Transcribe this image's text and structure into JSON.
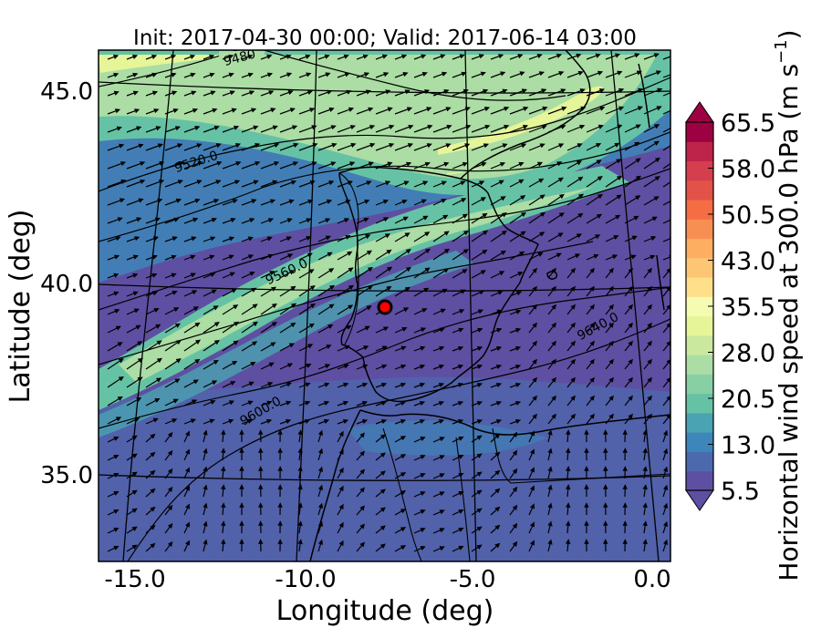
{
  "title": "Init: 2017-04-30 00:00; Valid: 2017-06-14 03:00",
  "chart_data": {
    "type": "map",
    "xlabel": "Longitude (deg)",
    "ylabel": "Latitude (deg)",
    "x_ticks": [
      "-15.0",
      "-10.0",
      "-5.0",
      "0.0"
    ],
    "y_ticks": [
      "45.0",
      "40.0",
      "35.0"
    ],
    "xlim": [
      -16.0,
      0.3
    ],
    "ylim": [
      32.8,
      46.0
    ],
    "colorbar": {
      "label": "Horizontal wind speed at 300.0 hPa (m s",
      "label_sup": "−1",
      "label_end": ")",
      "ticks": [
        "65.5",
        "58.0",
        "50.5",
        "43.0",
        "35.5",
        "28.0",
        "20.5",
        "13.0",
        "5.5"
      ],
      "range": [
        5.5,
        65.5
      ],
      "extend": "both",
      "colors": [
        "#5e4fa2",
        "#4c69ae",
        "#3d86b9",
        "#4aa3b2",
        "#66c2a5",
        "#88cfa4",
        "#abdda4",
        "#cbe99e",
        "#e6f598",
        "#f5fbb0",
        "#fee08b",
        "#fdc674",
        "#fdae61",
        "#f88f52",
        "#f46d43",
        "#e25249",
        "#d53e4f",
        "#be2449",
        "#9e0142"
      ]
    },
    "contours": [
      {
        "label": "9480"
      },
      {
        "label": "9520.0"
      },
      {
        "label": "9560.0"
      },
      {
        "label": "9600.0"
      },
      {
        "label": "9640.0"
      }
    ],
    "marker": {
      "lon": -7.7,
      "lat": 39.3,
      "color": "#ff0000"
    }
  }
}
